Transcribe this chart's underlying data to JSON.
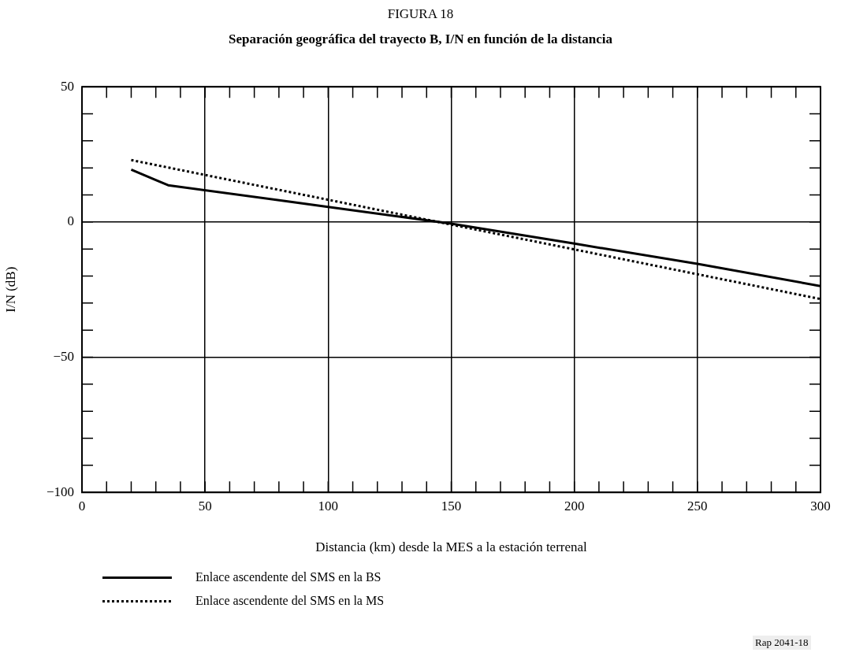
{
  "chart_data": {
    "type": "line",
    "title": "FIGURA 18",
    "subtitle": "Separación geográfica del trayecto B,  I/N en función de la distancia",
    "xlabel": "Distancia (km) desde la MES a la estación terrenal",
    "ylabel": "I/N (dB)",
    "xlim": [
      0,
      300
    ],
    "xticks": [
      0,
      {
        "value": 10,
        "label": null
      },
      {
        "value": 20,
        "label": null
      },
      {
        "value": 30,
        "label": null
      },
      {
        "value": 40,
        "label": null
      },
      50,
      {
        "value": 60,
        "label": null
      },
      {
        "value": 70,
        "label": null
      },
      {
        "value": 80,
        "label": null
      },
      {
        "value": 90,
        "label": null
      },
      100,
      {
        "value": 110,
        "label": null
      },
      {
        "value": 120,
        "label": null
      },
      {
        "value": 130,
        "label": null
      },
      {
        "value": 140,
        "label": null
      },
      150,
      {
        "value": 160,
        "label": null
      },
      {
        "value": 170,
        "label": null
      },
      {
        "value": 180,
        "label": null
      },
      {
        "value": 190,
        "label": null
      },
      200,
      {
        "value": 210,
        "label": null
      },
      {
        "value": 220,
        "label": null
      },
      {
        "value": 230,
        "label": null
      },
      {
        "value": 240,
        "label": null
      },
      250,
      {
        "value": 260,
        "label": null
      },
      {
        "value": 270,
        "label": null
      },
      {
        "value": 280,
        "label": null
      },
      {
        "value": 290,
        "label": null
      },
      300
    ],
    "ylim": [
      -100,
      50
    ],
    "yticks": [
      {
        "value": -100,
        "label": "−100"
      },
      {
        "value": -90,
        "label": null
      },
      {
        "value": -80,
        "label": null
      },
      {
        "value": -70,
        "label": null
      },
      {
        "value": -60,
        "label": null
      },
      {
        "value": -50,
        "label": "−50"
      },
      {
        "value": -40,
        "label": null
      },
      {
        "value": -30,
        "label": null
      },
      {
        "value": -20,
        "label": null
      },
      {
        "value": -10,
        "label": null
      },
      0,
      {
        "value": 10,
        "label": null
      },
      {
        "value": 20,
        "label": null
      },
      {
        "value": 30,
        "label": null
      },
      {
        "value": 40,
        "label": null
      },
      50
    ],
    "grid": true,
    "legend": "bottom",
    "marker": "none",
    "series": [
      {
        "name": "Enlace ascendente del SMS en la BS",
        "color": "#000000",
        "line_style": "solid",
        "x": [
          20,
          30,
          35,
          100,
          150,
          200,
          250,
          300
        ],
        "values": [
          19.4,
          15.5,
          13.6,
          5.6,
          -0.6,
          -8,
          -15.5,
          -23.7
        ]
      },
      {
        "name": "Enlace ascendente del SMS en la MS",
        "color": "#000000",
        "line_style": "dotted",
        "x": [
          20,
          300
        ],
        "values": [
          22.9,
          -28.5
        ]
      }
    ],
    "annotations": [
      "Rap 2041-18"
    ]
  }
}
